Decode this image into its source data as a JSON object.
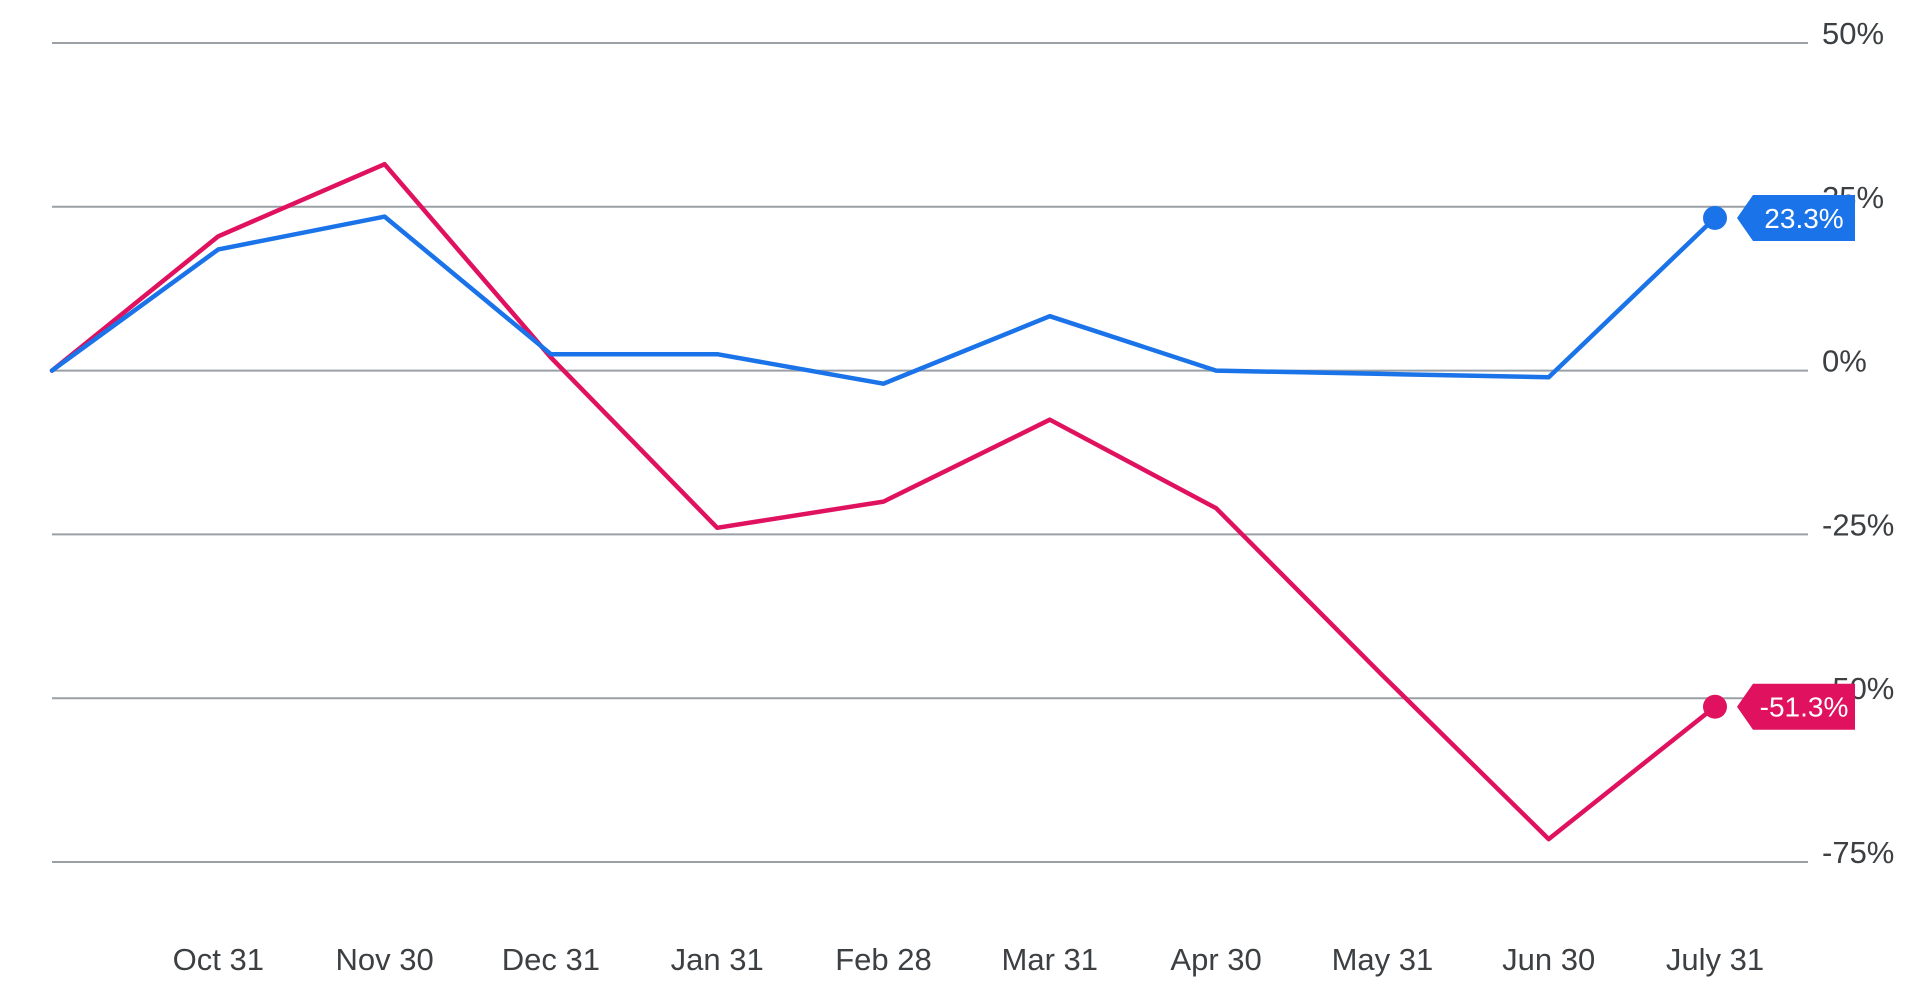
{
  "chart_data": {
    "type": "line",
    "title": "",
    "xlabel": "",
    "ylabel": "",
    "categories": [
      "",
      "Oct 31",
      "Nov 30",
      "Dec 31",
      "Jan 31",
      "Feb 28",
      "Mar 31",
      "Apr 30",
      "May 31",
      "Jun 30",
      "July 31"
    ],
    "ylim": [
      -75,
      50
    ],
    "y_ticks": [
      50,
      25,
      0,
      -25,
      -50,
      -75
    ],
    "y_tick_labels": [
      "50%",
      "25%",
      "0%",
      "-25%",
      "-50%",
      "-75%"
    ],
    "grid": true,
    "legend": "none",
    "series": [
      {
        "color": "#1a73e8",
        "values": [
          0,
          18.5,
          23.5,
          2.5,
          2.5,
          -2,
          8.3,
          0,
          -0.5,
          -1,
          23.3
        ],
        "end_label": "23.3%"
      },
      {
        "color": "#e0115f",
        "values": [
          0,
          20.5,
          31.5,
          2,
          -24,
          -20,
          -7.5,
          -21,
          -46.5,
          -71.5,
          -51.3
        ],
        "end_label": "-51.3%"
      }
    ]
  }
}
